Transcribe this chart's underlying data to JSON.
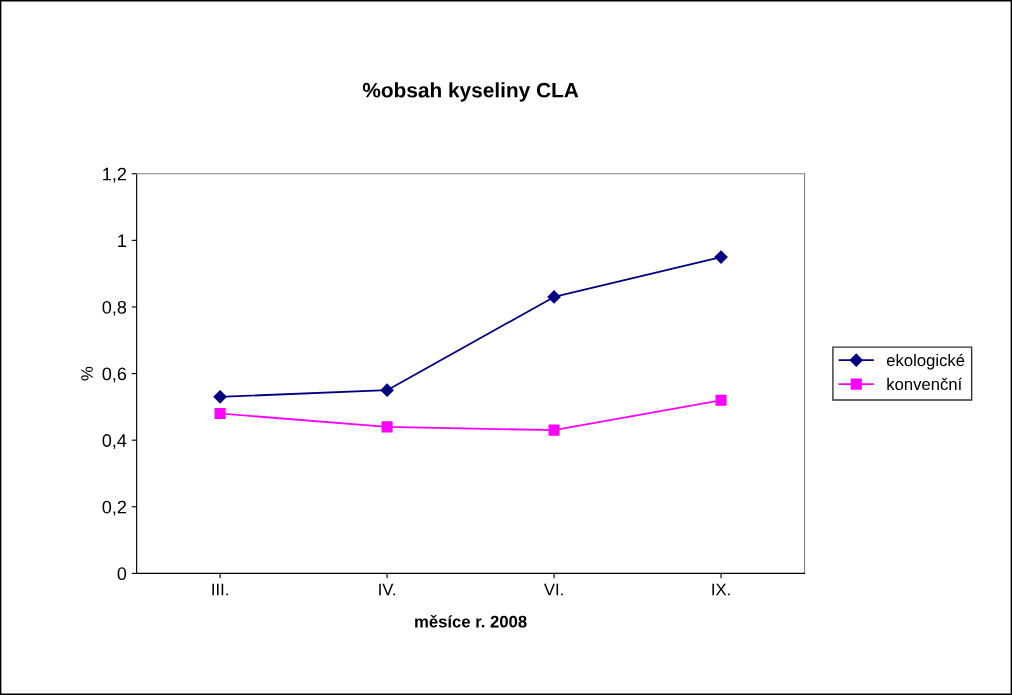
{
  "chart_data": {
    "type": "line",
    "title": "%obsah kyseliny CLA",
    "xlabel": "měsíce r. 2008",
    "ylabel": "%",
    "categories": [
      "III.",
      "IV.",
      "VI.",
      "IX."
    ],
    "series": [
      {
        "name": "ekologické",
        "color": "#000080",
        "marker": "diamond",
        "values": [
          0.53,
          0.55,
          0.83,
          0.95
        ]
      },
      {
        "name": "konvenční",
        "color": "#ff00ff",
        "marker": "square",
        "values": [
          0.48,
          0.44,
          0.43,
          0.52
        ]
      }
    ],
    "ylim": [
      0,
      1.2
    ],
    "yticks": [
      0,
      {
        "value": 0.2,
        "label": "0,2"
      },
      {
        "value": 0.4,
        "label": "0,4"
      },
      {
        "value": 0.6,
        "label": "0,6"
      },
      {
        "value": 0.8,
        "label": "0,8"
      },
      1,
      {
        "value": 1.2,
        "label": "1,2"
      }
    ],
    "grid": false,
    "legend": "right",
    "line_style": "solid"
  }
}
